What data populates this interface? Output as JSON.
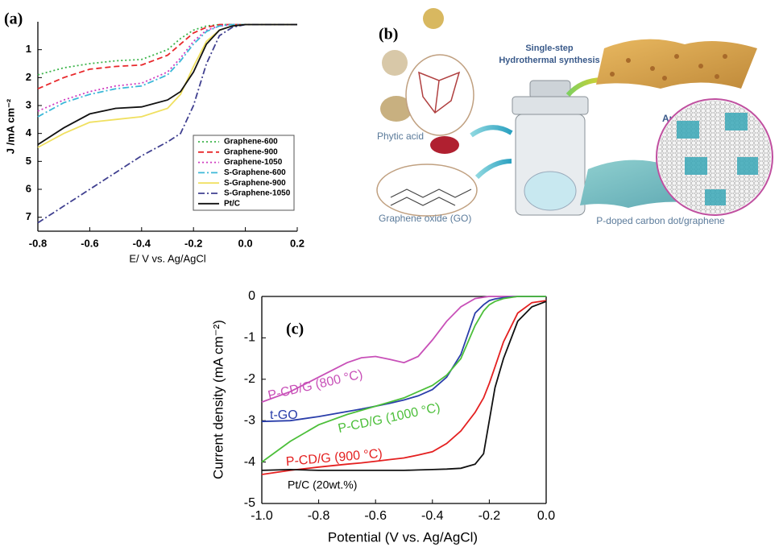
{
  "chart_data": [
    {
      "type": "line",
      "panel_label": "(a)",
      "x_label": "E/ V vs. Ag/AgCl",
      "y_label": "J /mA cm⁻²",
      "xlim": [
        -0.8,
        0.2
      ],
      "ylim": [
        7.5,
        0
      ],
      "xticks": [
        -0.8,
        -0.6,
        -0.4,
        -0.2,
        {
          "value": 0,
          "label": "0.0"
        },
        0.2
      ],
      "yticks": [
        1,
        2,
        3,
        4,
        5,
        6,
        7
      ],
      "legend": "lower right",
      "x": [
        -0.8,
        -0.7,
        -0.6,
        -0.5,
        -0.4,
        -0.3,
        -0.25,
        -0.2,
        -0.15,
        -0.1,
        -0.05,
        0,
        0.1,
        0.2
      ],
      "series": [
        {
          "name": "Graphene-600",
          "color": "#3cb44b",
          "style": "dotted",
          "values": [
            1.9,
            1.65,
            1.5,
            1.4,
            1.35,
            1.0,
            0.6,
            0.3,
            0.15,
            0.1,
            0.1,
            0.1,
            0.1,
            0.1
          ]
        },
        {
          "name": "Graphene-900",
          "color": "#e8282b",
          "style": "dashed",
          "values": [
            2.4,
            2.0,
            1.7,
            1.6,
            1.55,
            1.2,
            0.8,
            0.4,
            0.2,
            0.1,
            0.1,
            0.1,
            0.1,
            0.1
          ]
        },
        {
          "name": "Graphene-1050",
          "color": "#d03cc0",
          "style": "dotted",
          "values": [
            3.2,
            2.8,
            2.5,
            2.3,
            2.2,
            1.8,
            1.3,
            0.7,
            0.3,
            0.15,
            0.1,
            0.1,
            0.1,
            0.1
          ]
        },
        {
          "name": "S-Graphene-600",
          "color": "#3cb8d8",
          "style": "dashdot",
          "values": [
            3.4,
            2.9,
            2.6,
            2.4,
            2.3,
            1.9,
            1.4,
            0.8,
            0.35,
            0.15,
            0.1,
            0.1,
            0.1,
            0.1
          ]
        },
        {
          "name": "S-Graphene-900",
          "color": "#f0e060",
          "style": "solid",
          "values": [
            4.5,
            4.0,
            3.6,
            3.5,
            3.4,
            3.1,
            2.6,
            1.6,
            0.7,
            0.3,
            0.15,
            0.1,
            0.1,
            0.1
          ]
        },
        {
          "name": "S-Graphene-1050",
          "color": "#404090",
          "style": "dashdot",
          "values": [
            7.2,
            6.6,
            6.0,
            5.4,
            4.8,
            4.3,
            4.0,
            3.0,
            1.5,
            0.5,
            0.2,
            0.1,
            0.1,
            0.1
          ]
        },
        {
          "name": "Pt/C",
          "color": "#111111",
          "style": "solid",
          "values": [
            4.4,
            3.8,
            3.3,
            3.1,
            3.05,
            2.8,
            2.5,
            1.8,
            0.8,
            0.3,
            0.15,
            0.1,
            0.1,
            0.1
          ]
        }
      ]
    },
    {
      "type": "line",
      "panel_label": "(c)",
      "x_label": "Potential (V vs. Ag/AgCl)",
      "y_label": "Current density (mA cm⁻²)",
      "xlim": [
        -1.0,
        0.0
      ],
      "ylim": [
        -5,
        0
      ],
      "xticks": [
        {
          "value": -1,
          "label": "-1.0"
        },
        -0.8,
        -0.6,
        -0.4,
        -0.2,
        {
          "value": 0,
          "label": "0.0"
        }
      ],
      "yticks": [
        -5,
        -4,
        -3,
        -2,
        -1,
        0
      ],
      "x": [
        -1.0,
        -0.9,
        -0.8,
        -0.7,
        -0.65,
        -0.6,
        -0.55,
        -0.5,
        -0.45,
        -0.4,
        -0.35,
        -0.3,
        -0.25,
        -0.22,
        -0.2,
        -0.18,
        -0.15,
        -0.1,
        -0.05,
        0
      ],
      "series": [
        {
          "name": "P-CD/G (800 °C)",
          "color": "#c850b8",
          "style": "solid",
          "values": [
            -2.55,
            -2.3,
            -1.95,
            -1.6,
            -1.48,
            -1.45,
            -1.52,
            -1.6,
            -1.45,
            -1.05,
            -0.6,
            -0.25,
            -0.05,
            -0.02,
            0,
            0,
            0,
            0,
            0,
            0
          ]
        },
        {
          "name": "t-GO",
          "color": "#2a3eaa",
          "style": "solid",
          "values": [
            -3.02,
            -3.0,
            -2.9,
            -2.78,
            -2.72,
            -2.65,
            -2.58,
            -2.5,
            -2.4,
            -2.25,
            -1.95,
            -1.4,
            -0.4,
            -0.2,
            -0.1,
            -0.06,
            -0.03,
            0,
            0,
            0
          ]
        },
        {
          "name": "P-CD/G (1000 °C)",
          "color": "#4cbf3a",
          "style": "solid",
          "values": [
            -4.0,
            -3.5,
            -3.1,
            -2.85,
            -2.75,
            -2.65,
            -2.55,
            -2.45,
            -2.3,
            -2.15,
            -1.9,
            -1.5,
            -0.7,
            -0.35,
            -0.2,
            -0.12,
            -0.05,
            0,
            0,
            0
          ]
        },
        {
          "name": "P-CD/G (900 °C)",
          "color": "#e42020",
          "style": "solid",
          "values": [
            -4.3,
            -4.2,
            -4.12,
            -4.05,
            -4.02,
            -3.98,
            -3.94,
            -3.9,
            -3.83,
            -3.75,
            -3.55,
            -3.25,
            -2.8,
            -2.45,
            -2.1,
            -1.7,
            -1.1,
            -0.4,
            -0.15,
            -0.1
          ]
        },
        {
          "name": "Pt/C (20wt.%)",
          "color": "#111111",
          "style": "solid",
          "values": [
            -4.2,
            -4.18,
            -4.2,
            -4.2,
            -4.2,
            -4.2,
            -4.2,
            -4.2,
            -4.19,
            -4.18,
            -4.17,
            -4.15,
            -4.05,
            -3.8,
            -3.0,
            -2.2,
            -1.5,
            -0.6,
            -0.25,
            -0.12
          ]
        }
      ]
    }
  ],
  "diagram": {
    "panel_label": "(b)",
    "step_title": [
      "Single-step",
      "Hydrothermal synthesis"
    ],
    "phytic_acid": "Phytic acid",
    "graphene_oxide": "Graphene oxide (GO)",
    "annealing": "Annealing",
    "product": "P-doped carbon dot/graphene"
  }
}
